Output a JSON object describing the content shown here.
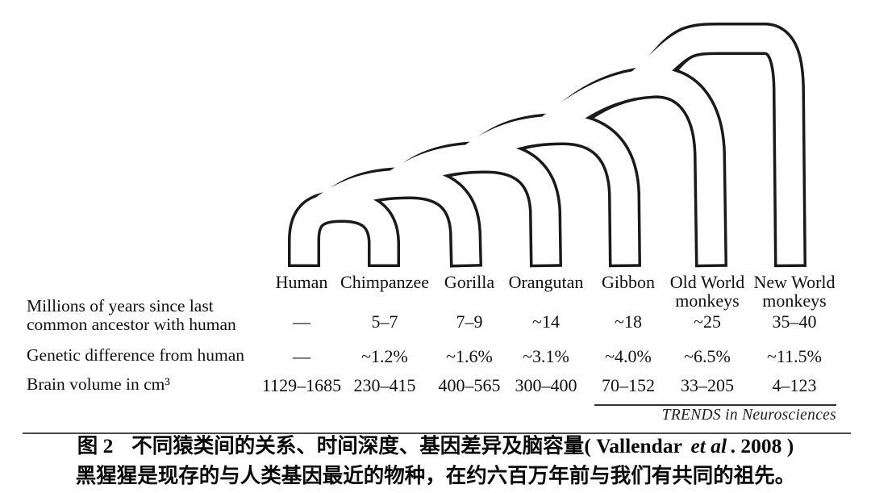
{
  "figure": {
    "diagram_name": "primate-phylogenetic-tree",
    "species": [
      "Human",
      "Chimpanzee",
      "Gorilla",
      "Orangutan",
      "Gibbon",
      "Old World monkeys",
      "New World monkeys"
    ],
    "tree_join_order": "((((((Human,Chimpanzee),Gorilla),Orangutan),Gibbon),Old World monkeys),New World monkeys)",
    "rows": [
      {
        "label": "Millions of years since last\ncommon ancestor with human",
        "values": [
          "—",
          "5–7",
          "7–9",
          "~14",
          "~18",
          "~25",
          "35–40"
        ]
      },
      {
        "label": "Genetic difference from human",
        "values": [
          "—",
          "~1.2%",
          "~1.6%",
          "~3.1%",
          "~4.0%",
          "~6.5%",
          "~11.5%"
        ]
      },
      {
        "label": "Brain volume in cm³",
        "values": [
          "1129–1685",
          "230–415",
          "400–565",
          "300–400",
          "70–152",
          "33–205",
          "4–123"
        ]
      }
    ],
    "source": "TRENDS in Neurosciences"
  },
  "caption": {
    "figure_label": "图 2",
    "line1_body": "不同猿类间的关系、时间深度、基因差异及脑容量",
    "paren_open": "( ",
    "author": "Vallendar ",
    "etal": "et al",
    "year": ". 2008",
    "paren_close": " )",
    "line2": "黑猩猩是现存的与人类基因最近的物种，在约六百万年前与我们有共同的祖先。"
  },
  "colors": {
    "ink": "#1a1a1a",
    "background": "#ffffff"
  }
}
